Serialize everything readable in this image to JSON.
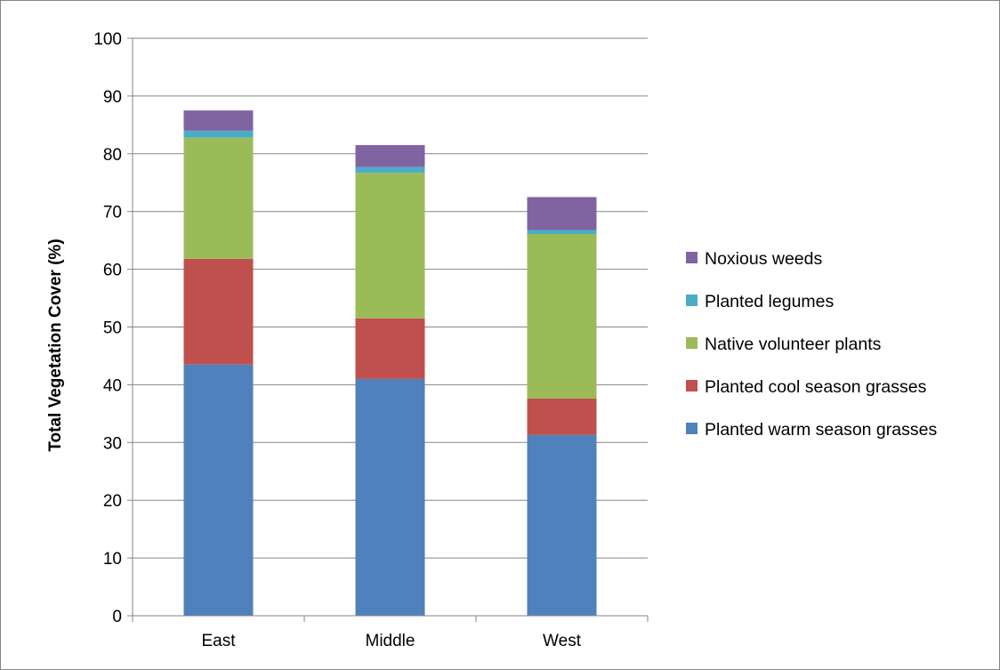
{
  "chart_data": {
    "type": "bar",
    "stacked": true,
    "categories": [
      "East",
      "Middle",
      "West"
    ],
    "series": [
      {
        "name": "Planted warm season grasses",
        "color": "#4F81BD",
        "values": [
          43.5,
          41.0,
          31.3
        ]
      },
      {
        "name": "Planted cool season grasses",
        "color": "#C0504D",
        "values": [
          18.3,
          10.5,
          6.3
        ]
      },
      {
        "name": "Native volunteer plants",
        "color": "#9BBB59",
        "values": [
          21.0,
          25.2,
          28.5
        ]
      },
      {
        "name": "Planted legumes",
        "color": "#4BACC6",
        "values": [
          1.2,
          1.0,
          0.7
        ]
      },
      {
        "name": "Noxious weeds",
        "color": "#8064A2",
        "values": [
          3.5,
          3.8,
          5.7
        ]
      }
    ],
    "title": "",
    "xlabel": "",
    "ylabel": "Total Vegetation Cover (%)",
    "ylim": [
      0,
      100
    ],
    "yticks": [
      0,
      10,
      20,
      30,
      40,
      50,
      60,
      70,
      80,
      90,
      100
    ],
    "grid": true,
    "legend_position": "right",
    "legend_order": "reversed"
  }
}
